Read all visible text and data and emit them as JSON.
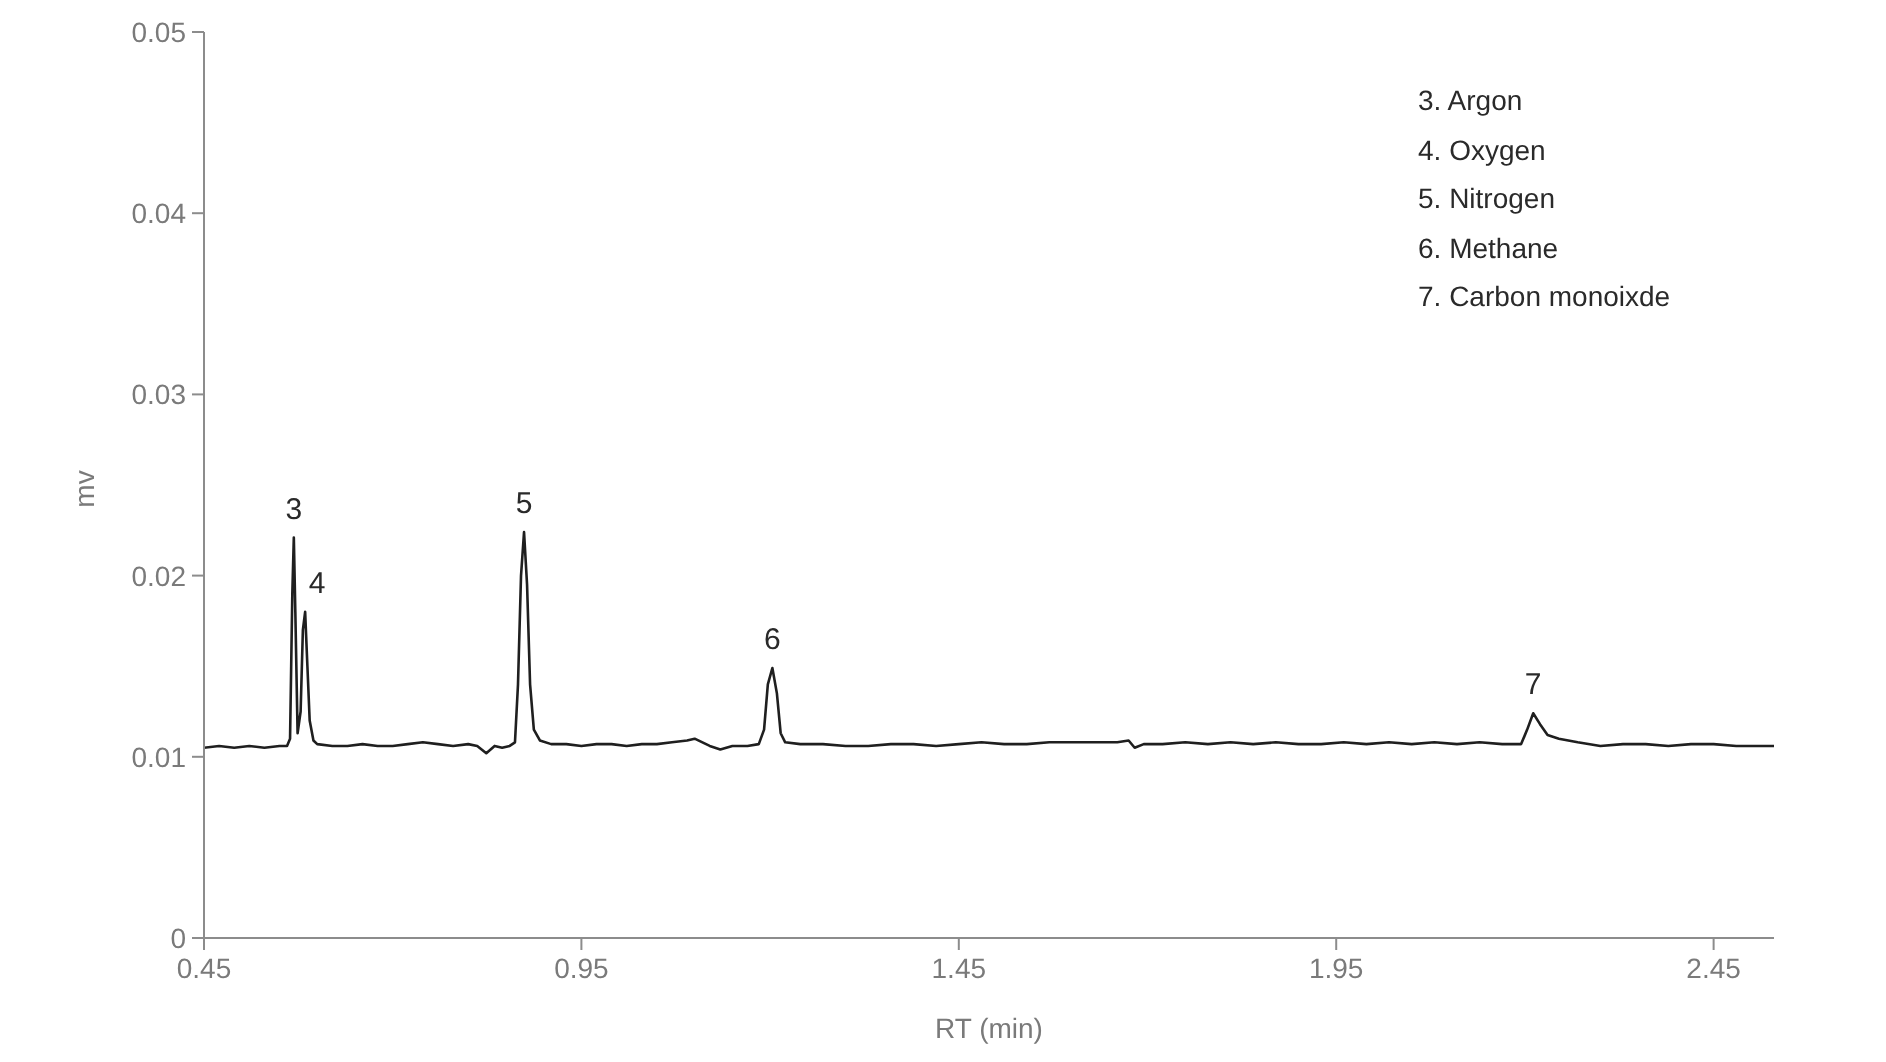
{
  "chart_data": {
    "type": "line",
    "xlabel": "RT (min)",
    "ylabel": "mv",
    "color": "#1f1f1f",
    "marker": "none",
    "line_style": "solid",
    "xlim": [
      0.45,
      2.53
    ],
    "xticks": [
      0.45,
      0.95,
      1.45,
      1.95,
      2.45
    ],
    "ylim": [
      0,
      0.05
    ],
    "yticks": [
      0,
      0.01,
      0.02,
      0.03,
      0.04,
      0.05
    ],
    "x": [
      0.45,
      0.47,
      0.49,
      0.51,
      0.53,
      0.55,
      0.56,
      0.564,
      0.567,
      0.569,
      0.571,
      0.574,
      0.578,
      0.581,
      0.584,
      0.587,
      0.59,
      0.595,
      0.6,
      0.62,
      0.64,
      0.66,
      0.68,
      0.7,
      0.72,
      0.74,
      0.76,
      0.78,
      0.8,
      0.812,
      0.824,
      0.835,
      0.845,
      0.855,
      0.862,
      0.866,
      0.87,
      0.874,
      0.878,
      0.882,
      0.887,
      0.895,
      0.91,
      0.93,
      0.95,
      0.97,
      0.99,
      1.01,
      1.03,
      1.05,
      1.07,
      1.09,
      1.1,
      1.12,
      1.134,
      1.15,
      1.17,
      1.185,
      1.192,
      1.197,
      1.203,
      1.209,
      1.214,
      1.22,
      1.24,
      1.27,
      1.3,
      1.33,
      1.36,
      1.39,
      1.42,
      1.45,
      1.48,
      1.51,
      1.54,
      1.57,
      1.6,
      1.63,
      1.66,
      1.675,
      1.683,
      1.695,
      1.72,
      1.75,
      1.78,
      1.81,
      1.84,
      1.87,
      1.9,
      1.93,
      1.96,
      1.99,
      2.02,
      2.05,
      2.08,
      2.11,
      2.14,
      2.17,
      2.195,
      2.203,
      2.211,
      2.22,
      2.23,
      2.245,
      2.27,
      2.3,
      2.33,
      2.36,
      2.39,
      2.42,
      2.45,
      2.48,
      2.51,
      2.53
    ],
    "values": [
      0.0105,
      0.0106,
      0.0105,
      0.0106,
      0.0105,
      0.0106,
      0.0106,
      0.011,
      0.019,
      0.0221,
      0.018,
      0.0113,
      0.0125,
      0.017,
      0.018,
      0.015,
      0.012,
      0.0109,
      0.0107,
      0.0106,
      0.0106,
      0.0107,
      0.0106,
      0.0106,
      0.0107,
      0.0108,
      0.0107,
      0.0106,
      0.0107,
      0.0106,
      0.0102,
      0.0106,
      0.0105,
      0.0106,
      0.0108,
      0.014,
      0.02,
      0.0224,
      0.0195,
      0.014,
      0.0115,
      0.0109,
      0.0107,
      0.0107,
      0.0106,
      0.0107,
      0.0107,
      0.0106,
      0.0107,
      0.0107,
      0.0108,
      0.0109,
      0.011,
      0.0106,
      0.0104,
      0.0106,
      0.0106,
      0.0107,
      0.0115,
      0.014,
      0.0149,
      0.0135,
      0.0113,
      0.0108,
      0.0107,
      0.0107,
      0.0106,
      0.0106,
      0.0107,
      0.0107,
      0.0106,
      0.0107,
      0.0108,
      0.0107,
      0.0107,
      0.0108,
      0.0108,
      0.0108,
      0.0108,
      0.0109,
      0.0105,
      0.0107,
      0.0107,
      0.0108,
      0.0107,
      0.0108,
      0.0107,
      0.0108,
      0.0107,
      0.0107,
      0.0108,
      0.0107,
      0.0108,
      0.0107,
      0.0108,
      0.0107,
      0.0108,
      0.0107,
      0.0107,
      0.0115,
      0.0124,
      0.0118,
      0.0112,
      0.011,
      0.0108,
      0.0106,
      0.0107,
      0.0107,
      0.0106,
      0.0107,
      0.0107,
      0.0106,
      0.0106,
      0.0106
    ],
    "annotations": [
      {
        "text": "3",
        "x": 0.569,
        "y": 0.0221
      },
      {
        "text": "4",
        "x": 0.584,
        "y": 0.018
      },
      {
        "text": "5",
        "x": 0.874,
        "y": 0.0224
      },
      {
        "text": "6",
        "x": 1.203,
        "y": 0.0149
      },
      {
        "text": "7",
        "x": 2.211,
        "y": 0.0124
      },
      "3. Argon",
      "4. Oxygen",
      "5. Nitrogen",
      "6. Methane",
      "7. Carbon monoixde"
    ]
  }
}
